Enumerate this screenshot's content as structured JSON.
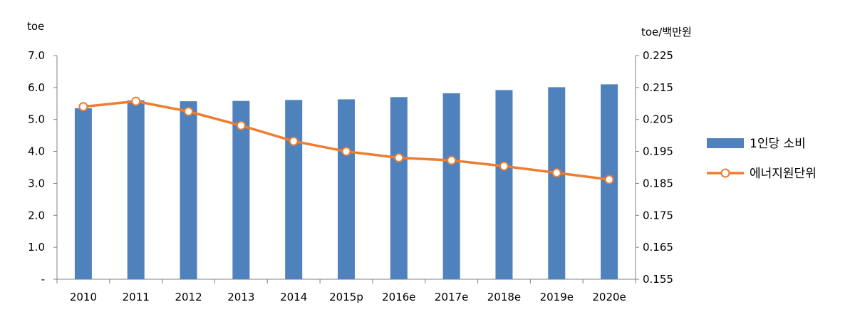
{
  "chart_data": {
    "type": "bar",
    "categories": [
      "2010",
      "2011",
      "2012",
      "2013",
      "2014",
      "2015p",
      "2016e",
      "2017e",
      "2018e",
      "2019e",
      "2020e"
    ],
    "y_left_unit": "toe",
    "y_right_unit": "toe/백만원",
    "y_left_ticks": [
      "-",
      "1.0",
      "2.0",
      "3.0",
      "4.0",
      "5.0",
      "6.0",
      "7.0"
    ],
    "y_right_ticks": [
      "0.155",
      "0.165",
      "0.175",
      "0.185",
      "0.195",
      "0.205",
      "0.215",
      "0.225"
    ],
    "ylim_left": [
      0,
      7
    ],
    "ylim_right": [
      0.155,
      0.225
    ],
    "legend_position": "right",
    "series": [
      {
        "name": "1인당 소비",
        "type": "bar",
        "axis": "left",
        "color": "#4f81bd",
        "values": [
          5.35,
          5.6,
          5.57,
          5.58,
          5.61,
          5.63,
          5.7,
          5.82,
          5.92,
          6.01,
          6.1
        ]
      },
      {
        "name": "에너지원단위",
        "type": "line",
        "axis": "right",
        "color": "#ed7d31",
        "values": [
          0.209,
          0.2107,
          0.2075,
          0.2031,
          0.1982,
          0.195,
          0.193,
          0.1922,
          0.1904,
          0.1883,
          0.1862
        ]
      }
    ]
  }
}
